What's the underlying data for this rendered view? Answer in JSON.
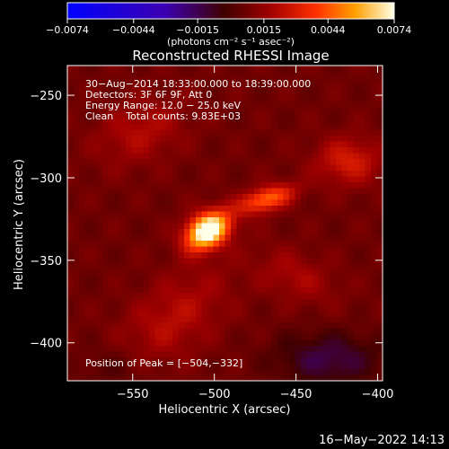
{
  "chart_data": {
    "type": "heatmap",
    "title": "Reconstructed RHESSI Image",
    "xlabel": "Heliocentric X (arcsec)",
    "ylabel": "Heliocentric Y (arcsec)",
    "xlim": [
      -590,
      -397
    ],
    "ylim": [
      -423,
      -232
    ],
    "x_ticks": [
      -550,
      -500,
      -450,
      -400
    ],
    "x_tick_labels": [
      "−550",
      "−500",
      "−450",
      "−400"
    ],
    "y_ticks": [
      -250,
      -300,
      -350,
      -400
    ],
    "y_tick_labels": [
      "−250",
      "−300",
      "−350",
      "−400"
    ],
    "colorbar": {
      "min": -0.0074,
      "max": 0.0074,
      "tick_values": [
        -0.0074,
        -0.0044,
        -0.0015,
        0.0015,
        0.0044,
        0.0074
      ],
      "tick_labels": [
        "−0.0074",
        "−0.0044",
        "−0.0015",
        "0.0015",
        "0.0044",
        "0.0074"
      ],
      "units_label": "(photons cm⁻² s⁻¹ asec⁻²)"
    },
    "annotations": [
      "30−Aug−2014 18:33:00.000 to 18:39:00.000",
      "Detectors: 3F 6F 9F, Att 0",
      "Energy Range: 12.0 − 25.0 keV",
      "Clean    Total counts: 9.83E+03"
    ],
    "peak_label": "Position of Peak = [−504,−332]",
    "peak": {
      "x": -504,
      "y": -332,
      "value": 0.0074
    },
    "sources": [
      {
        "x": -504,
        "y": -332,
        "sx": 10,
        "sy": 7,
        "amp": 0.008,
        "theta": 0.55
      },
      {
        "x": -468,
        "y": -313,
        "sx": 12,
        "sy": 5,
        "amp": 0.004,
        "theta": 0.3
      },
      {
        "x": -545,
        "y": -272,
        "sx": 20,
        "sy": 13,
        "amp": 0.0014,
        "theta": 0.4
      },
      {
        "x": -418,
        "y": -290,
        "sx": 14,
        "sy": 10,
        "amp": 0.0022,
        "theta": 0.0
      },
      {
        "x": -525,
        "y": -385,
        "sx": 28,
        "sy": 15,
        "amp": 0.0015,
        "theta": 0.7
      },
      {
        "x": -450,
        "y": -360,
        "sx": 18,
        "sy": 10,
        "amp": 0.0012,
        "theta": -0.4
      },
      {
        "x": -430,
        "y": -410,
        "sx": 22,
        "sy": 11,
        "amp": -0.002,
        "theta": 0.0
      },
      {
        "x": -560,
        "y": -415,
        "sx": 16,
        "sy": 10,
        "amp": -0.0008,
        "theta": 0.0
      }
    ],
    "background": 0.0007
  },
  "footer": {
    "date": "16−May−2022 14:13"
  }
}
